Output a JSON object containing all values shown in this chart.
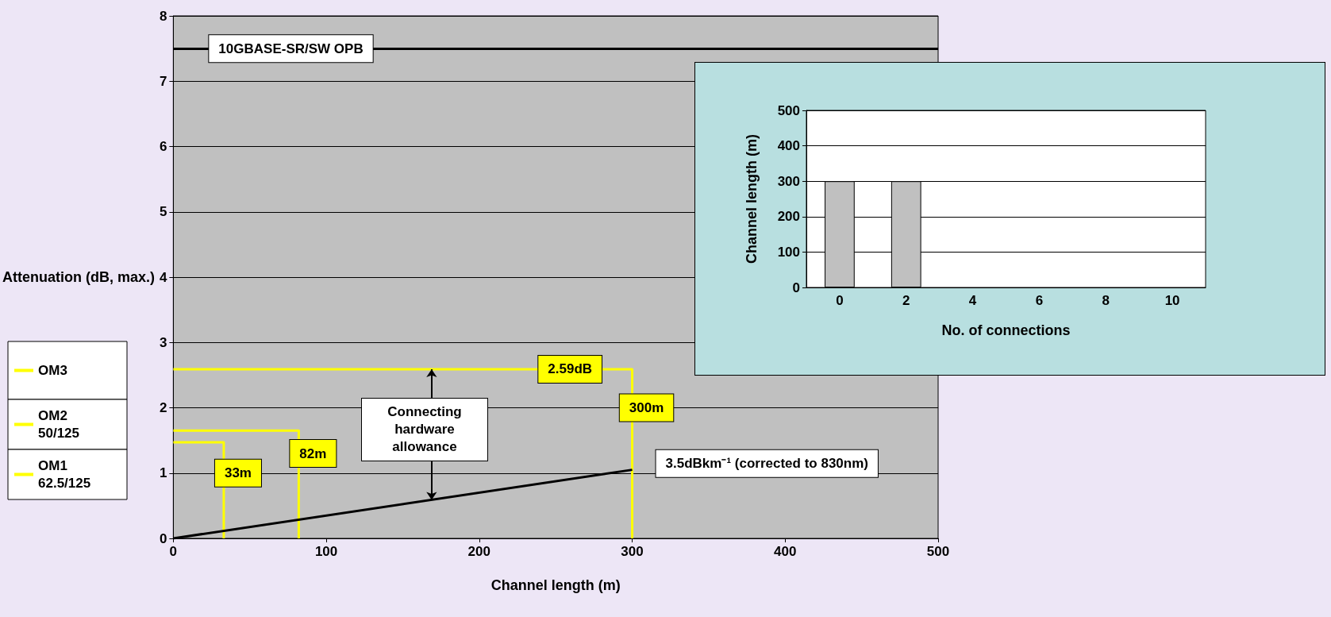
{
  "chart_data": [
    {
      "type": "line",
      "xlabel": "Channel length (m)",
      "ylabel": "Attenuation (dB, max.)",
      "xlim": [
        0,
        500
      ],
      "xticks": [
        0,
        100,
        200,
        300,
        400,
        500
      ],
      "ylim": [
        0,
        8
      ],
      "yticks": [
        0,
        1,
        2,
        3,
        4,
        5,
        6,
        7,
        8
      ],
      "grid": "y",
      "legend": "left",
      "marker": "none",
      "series": [
        {
          "name": "3.5dBkm⁻¹ (corrected to 830nm)",
          "color": "#000000",
          "x": [
            0,
            300
          ],
          "values": [
            0,
            1.05
          ]
        },
        {
          "name": "OM3",
          "color": "#ffff00",
          "x": [
            0,
            300,
            300
          ],
          "values": [
            2.59,
            2.59,
            0
          ]
        },
        {
          "name": "OM2 50/125",
          "color": "#ffff00",
          "x": [
            0,
            82,
            82
          ],
          "values": [
            1.65,
            1.65,
            0
          ]
        },
        {
          "name": "OM1 62.5/125",
          "color": "#ffff00",
          "x": [
            0,
            33,
            33
          ],
          "values": [
            1.47,
            1.47,
            0
          ]
        }
      ],
      "ref_lines": [
        {
          "axis": "y",
          "value": 7.5,
          "label": "10GBASE-SR/SW OPB",
          "color": "#000000"
        }
      ],
      "annotations": [
        {
          "text": "2.59dB",
          "x": 250,
          "y": 2.59
        },
        {
          "text": "300m",
          "x": 300,
          "y": 2
        },
        {
          "text": "82m",
          "x": 82,
          "y": 1.3
        },
        {
          "text": "33m",
          "x": 33,
          "y": 1
        },
        "Connecting hardware allowance"
      ]
    },
    {
      "type": "bar",
      "xlabel": "No. of connections",
      "ylabel": "Channel length (m)",
      "categories": [
        "0",
        "2",
        "4",
        "6",
        "8",
        "10"
      ],
      "values": [
        300,
        300,
        null,
        null,
        null,
        null
      ],
      "color": "#c0c0c0",
      "ylim": [
        0,
        500
      ],
      "yticks": [
        0,
        100,
        200,
        300,
        400,
        500
      ],
      "grid": "y"
    }
  ]
}
